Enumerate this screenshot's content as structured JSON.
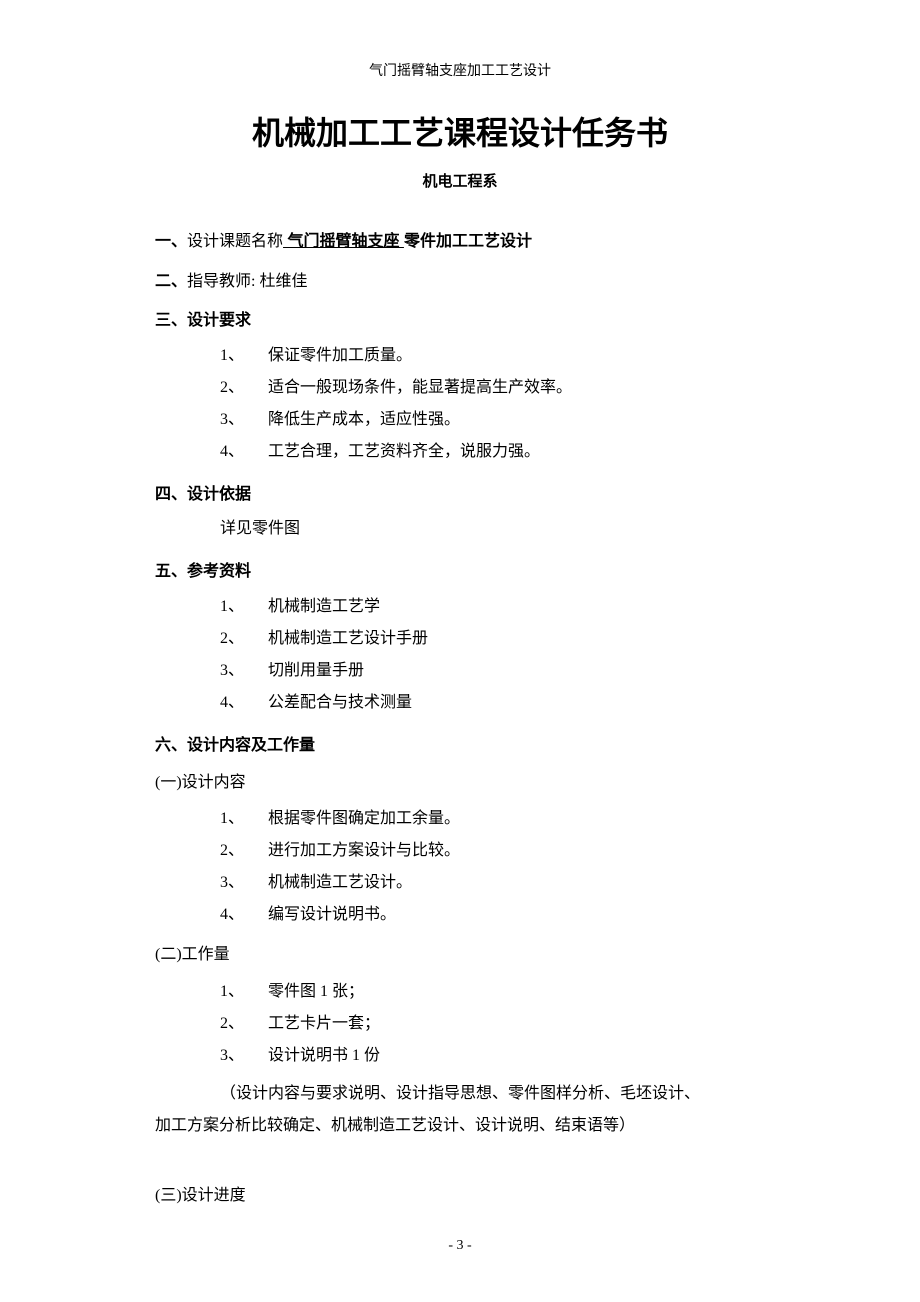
{
  "header": "气门摇臂轴支座加工工艺设计",
  "main_title": "机械加工工艺课程设计任务书",
  "subtitle": "机电工程系",
  "section1": {
    "prefix": "一、",
    "label": "设计课题名称",
    "underlined": " 气门摇臂轴支座 ",
    "suffix": "零件加工工艺设计"
  },
  "section2": {
    "prefix": "二、",
    "label": "指导教师: ",
    "name": "杜维佳"
  },
  "section3": {
    "prefix": "三、",
    "label": "设计要求",
    "items": [
      {
        "num": "1、",
        "text": "保证零件加工质量。"
      },
      {
        "num": "2、",
        "text": "适合一般现场条件，能显著提高生产效率。"
      },
      {
        "num": "3、",
        "text": "降低生产成本，适应性强。"
      },
      {
        "num": "4、",
        "text": "工艺合理，工艺资料齐全，说服力强。"
      }
    ]
  },
  "section4": {
    "prefix": "四、",
    "label": "设计依据",
    "content": "详见零件图"
  },
  "section5": {
    "prefix": "五、",
    "label": "参考资料",
    "items": [
      {
        "num": "1、",
        "text": "机械制造工艺学"
      },
      {
        "num": "2、",
        "text": "机械制造工艺设计手册"
      },
      {
        "num": "3、",
        "text": "切削用量手册"
      },
      {
        "num": "4、",
        "text": "公差配合与技术测量"
      }
    ]
  },
  "section6": {
    "prefix": "六、",
    "label": "设计内容及工作量",
    "sub1": {
      "heading": "(一)设计内容",
      "items": [
        {
          "num": "1、",
          "text": "根据零件图确定加工余量。"
        },
        {
          "num": "2、",
          "text": "进行加工方案设计与比较。"
        },
        {
          "num": "3、",
          "text": "机械制造工艺设计。"
        },
        {
          "num": "4、",
          "text": "编写设计说明书。"
        }
      ]
    },
    "sub2": {
      "heading": "(二)工作量",
      "items": [
        {
          "num": "1、",
          "text": "零件图 1 张；"
        },
        {
          "num": "2、",
          "text": "工艺卡片一套；"
        },
        {
          "num": "3、",
          "text": "设计说明书 1 份"
        }
      ],
      "note_line1": "（设计内容与要求说明、设计指导思想、零件图样分析、毛坯设计、",
      "note_line2": "加工方案分析比较确定、机械制造工艺设计、设计说明、结束语等）"
    },
    "sub3": {
      "heading": "(三)设计进度"
    }
  },
  "page_number": "- 3 -"
}
